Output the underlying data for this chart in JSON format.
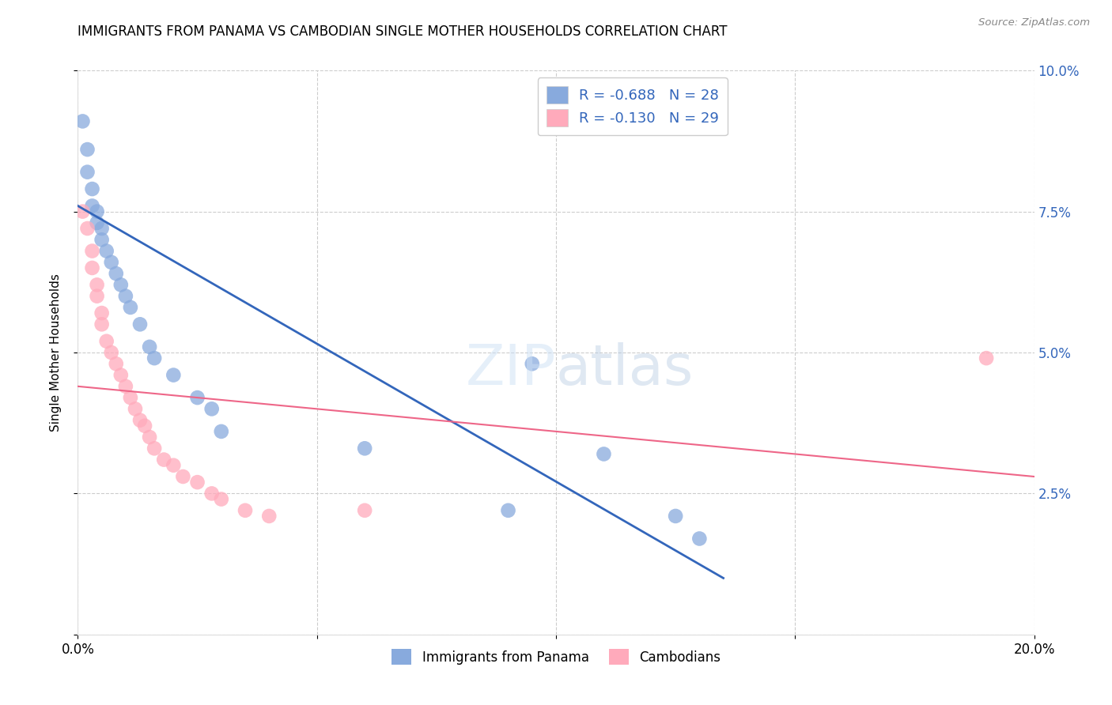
{
  "title": "IMMIGRANTS FROM PANAMA VS CAMBODIAN SINGLE MOTHER HOUSEHOLDS CORRELATION CHART",
  "source": "Source: ZipAtlas.com",
  "ylabel": "Single Mother Households",
  "xlim": [
    0.0,
    0.2
  ],
  "ylim": [
    0.0,
    0.1
  ],
  "xticks": [
    0.0,
    0.05,
    0.1,
    0.15,
    0.2
  ],
  "xticklabels": [
    "0.0%",
    "",
    "",
    "",
    "20.0%"
  ],
  "yticks": [
    0.0,
    0.025,
    0.05,
    0.075,
    0.1
  ],
  "yticklabels_right": [
    "",
    "2.5%",
    "5.0%",
    "7.5%",
    "10.0%"
  ],
  "blue_color": "#88AADD",
  "pink_color": "#FFAABB",
  "line_blue": "#3366BB",
  "line_pink": "#EE6688",
  "blue_scatter_x": [
    0.001,
    0.002,
    0.002,
    0.003,
    0.003,
    0.004,
    0.004,
    0.005,
    0.005,
    0.006,
    0.007,
    0.008,
    0.009,
    0.01,
    0.011,
    0.013,
    0.015,
    0.016,
    0.02,
    0.025,
    0.028,
    0.03,
    0.06,
    0.09,
    0.095,
    0.11,
    0.125,
    0.13
  ],
  "blue_scatter_y": [
    0.091,
    0.086,
    0.082,
    0.079,
    0.076,
    0.075,
    0.073,
    0.072,
    0.07,
    0.068,
    0.066,
    0.064,
    0.062,
    0.06,
    0.058,
    0.055,
    0.051,
    0.049,
    0.046,
    0.042,
    0.04,
    0.036,
    0.033,
    0.022,
    0.048,
    0.032,
    0.021,
    0.017
  ],
  "pink_scatter_x": [
    0.001,
    0.002,
    0.003,
    0.003,
    0.004,
    0.004,
    0.005,
    0.005,
    0.006,
    0.007,
    0.008,
    0.009,
    0.01,
    0.011,
    0.012,
    0.013,
    0.014,
    0.015,
    0.016,
    0.018,
    0.02,
    0.022,
    0.025,
    0.028,
    0.03,
    0.035,
    0.04,
    0.06,
    0.19
  ],
  "pink_scatter_y": [
    0.075,
    0.072,
    0.068,
    0.065,
    0.062,
    0.06,
    0.057,
    0.055,
    0.052,
    0.05,
    0.048,
    0.046,
    0.044,
    0.042,
    0.04,
    0.038,
    0.037,
    0.035,
    0.033,
    0.031,
    0.03,
    0.028,
    0.027,
    0.025,
    0.024,
    0.022,
    0.021,
    0.022,
    0.049
  ],
  "blue_line_x0": 0.0,
  "blue_line_y0": 0.076,
  "blue_line_x1": 0.135,
  "blue_line_y1": 0.01,
  "pink_line_x0": 0.0,
  "pink_line_y0": 0.044,
  "pink_line_x1": 0.2,
  "pink_line_y1": 0.028,
  "background_color": "#ffffff",
  "grid_color": "#cccccc",
  "watermark_text": "ZIPatlas",
  "watermark_color": "#ddeeff"
}
